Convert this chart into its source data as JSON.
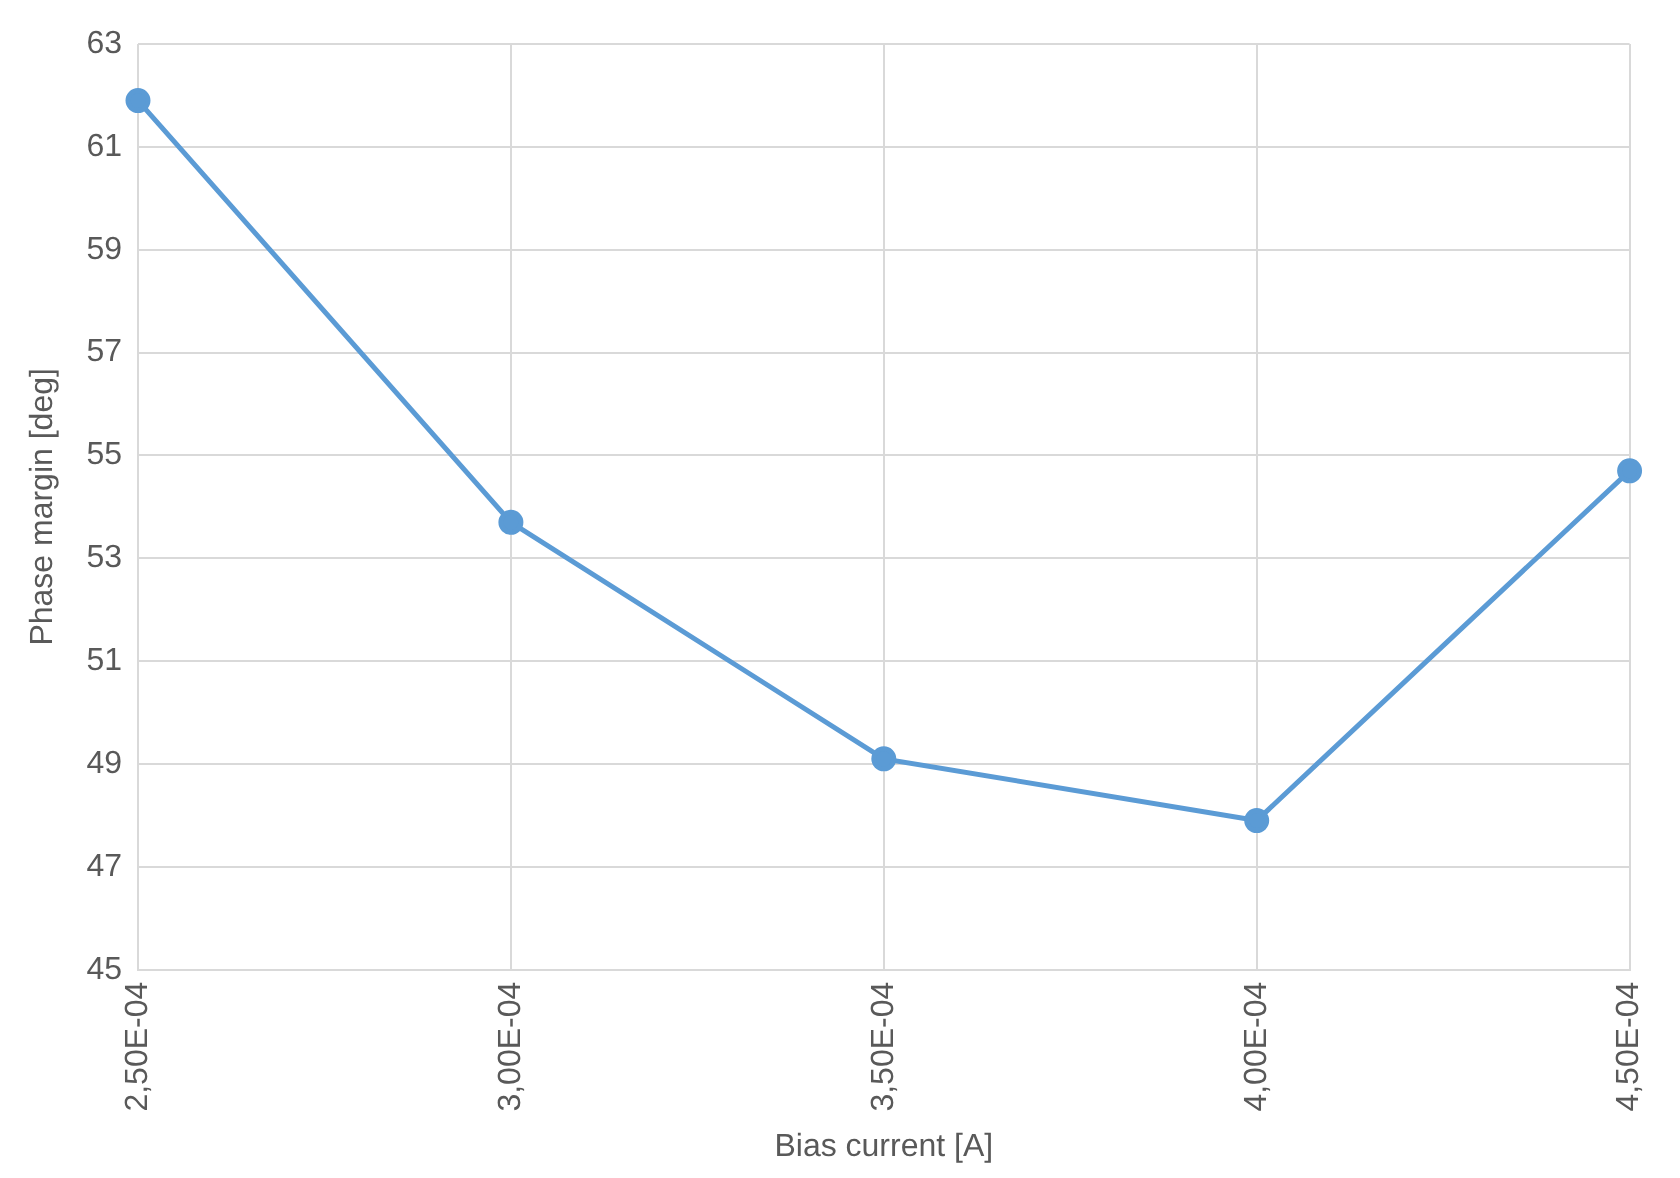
{
  "chart_data": {
    "type": "line",
    "xlabel": "Bias current [A]",
    "ylabel": "Phase margin [deg]",
    "categories": [
      "2,50E-04",
      "3,00E-04",
      "3,50E-04",
      "4,00E-04",
      "4,50E-04"
    ],
    "series": [
      {
        "color": "#5b9bd5",
        "values": [
          61.9,
          53.7,
          49.1,
          47.9,
          54.7
        ]
      }
    ],
    "ylim": [
      45,
      63
    ],
    "yticks": [
      45,
      47,
      49,
      51,
      53,
      55,
      57,
      59,
      61,
      63
    ],
    "grid": true,
    "legend": false,
    "marker": "circle",
    "line_style": "solid"
  }
}
